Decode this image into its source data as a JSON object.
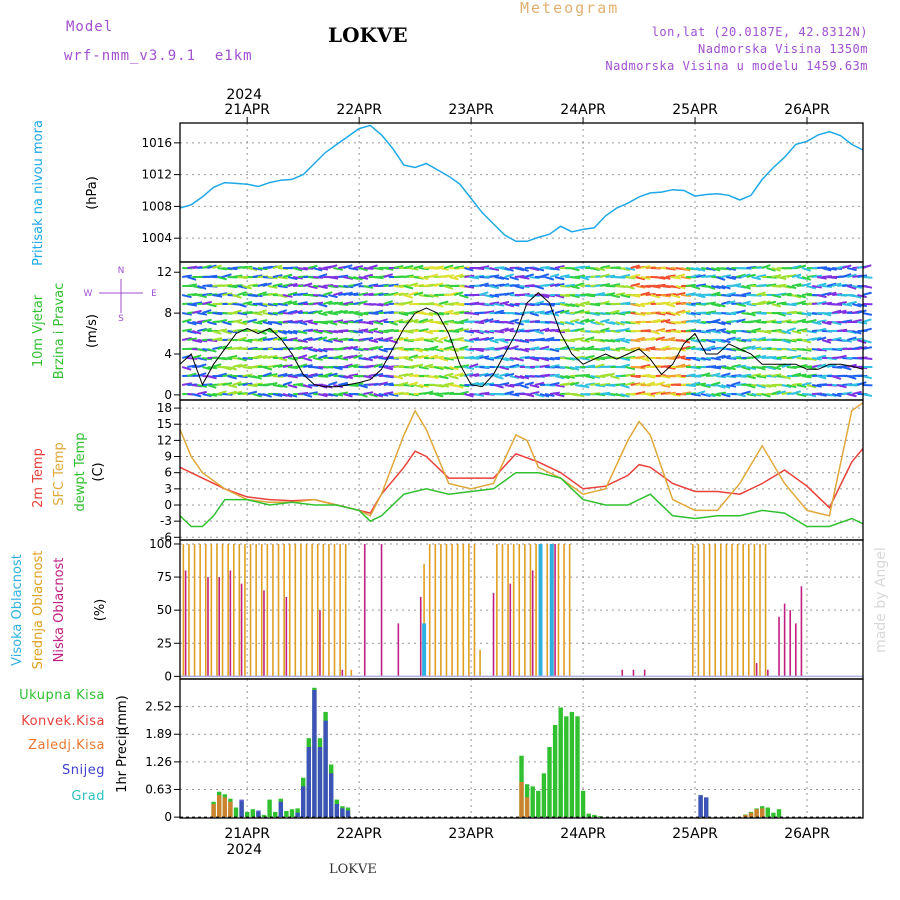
{
  "header": {
    "model_label": "Model",
    "model_name": "wrf-nmm_v3.9.1  e1km",
    "station": "LOKVE",
    "meteogram_label": "Meteogram",
    "lonlat": "lon,lat (20.0187E, 42.8312N)",
    "altitude": "Nadmorska Visina 1350m",
    "model_altitude": "Nadmorska Visina u modelu 1459.63m",
    "footer_station": "LOKVE",
    "watermark": "made by Angel"
  },
  "dates": {
    "labels": [
      "21APR",
      "22APR",
      "23APR",
      "24APR",
      "25APR",
      "26APR"
    ],
    "year": "2024",
    "range_days": [
      -0.6,
      5.5
    ]
  },
  "colors": {
    "pressure": "#1ea8e6",
    "t2m": "#e8413c",
    "tsfc": "#e0a83a",
    "dewpoint": "#30c030",
    "high_cloud": "#30b0e0",
    "mid_cloud": "#e0a020",
    "low_cloud": "#c02080",
    "total_precip": "#30c030",
    "conv_precip": "#e8413c",
    "frozen_precip": "#e87830",
    "snow": "#4040d0",
    "hail": "#30c0c0",
    "title_purple": "#a050d0",
    "meteogram_orange": "#e0b070"
  },
  "chart_data": [
    {
      "id": "pressure",
      "type": "line",
      "ylabel_1": "Pritisak na nivou mora",
      "ylabel_2": "(hPa)",
      "yticks": [
        "1004",
        "1008",
        "1012",
        "1016"
      ],
      "ylim": [
        1001,
        1018.5
      ],
      "series": [
        {
          "x": [
            -0.6,
            -0.5,
            -0.4,
            -0.3,
            -0.2,
            -0.1,
            0.0,
            0.1,
            0.2,
            0.3,
            0.4,
            0.5,
            0.6,
            0.7,
            0.8,
            0.9,
            1.0,
            1.1,
            1.2,
            1.3,
            1.4,
            1.5,
            1.6,
            1.7,
            1.8,
            1.9,
            2.0,
            2.1,
            2.2,
            2.3,
            2.4,
            2.5,
            2.6,
            2.7,
            2.8,
            2.9,
            3.0,
            3.1,
            3.2,
            3.3,
            3.4,
            3.5,
            3.6,
            3.7,
            3.8,
            3.9,
            4.0,
            4.1,
            4.2,
            4.3,
            4.4,
            4.5,
            4.6,
            4.7,
            4.8,
            4.9,
            5.0,
            5.1,
            5.2,
            5.3,
            5.4,
            5.5
          ],
          "y": [
            1007.8,
            1008.2,
            1009.2,
            1010.4,
            1011,
            1010.9,
            1010.8,
            1010.5,
            1011,
            1011.3,
            1011.4,
            1012,
            1013.4,
            1014.8,
            1015.8,
            1016.8,
            1017.8,
            1018.2,
            1017,
            1015.3,
            1013.2,
            1012.9,
            1013.4,
            1012.6,
            1011.8,
            1010.8,
            1009,
            1007.2,
            1005.8,
            1004.4,
            1003.6,
            1003.6,
            1004.1,
            1004.5,
            1005.5,
            1004.8,
            1005.1,
            1005.3,
            1006.8,
            1007.8,
            1008.4,
            1009.2,
            1009.7,
            1009.8,
            1010.1,
            1010,
            1009.3,
            1009.5,
            1009.6,
            1009.4,
            1008.8,
            1009.4,
            1011.4,
            1012.9,
            1014.2,
            1015.8,
            1016.2,
            1017,
            1017.4,
            1016.9,
            1015.8,
            1015.1
          ]
        }
      ]
    },
    {
      "id": "wind",
      "type": "line",
      "ylabel_1": "10m Vjetar",
      "ylabel_2": "Brzina i Pravac",
      "ylabel_3": "(m/s)",
      "compass": [
        "N",
        "W",
        "E",
        "S"
      ],
      "yticks": [
        "0",
        "4",
        "8",
        "12"
      ],
      "ylim": [
        -0.5,
        13
      ],
      "series": [
        {
          "x": [
            -0.6,
            -0.5,
            -0.4,
            -0.3,
            -0.2,
            -0.1,
            0.0,
            0.1,
            0.2,
            0.3,
            0.4,
            0.5,
            0.6,
            0.7,
            0.8,
            0.9,
            1.0,
            1.1,
            1.2,
            1.3,
            1.4,
            1.5,
            1.6,
            1.7,
            1.8,
            1.9,
            2.0,
            2.1,
            2.2,
            2.3,
            2.4,
            2.5,
            2.6,
            2.7,
            2.8,
            2.9,
            3.0,
            3.1,
            3.2,
            3.3,
            3.4,
            3.5,
            3.6,
            3.7,
            3.8,
            3.9,
            4.0,
            4.1,
            4.2,
            4.3,
            4.4,
            4.5,
            4.6,
            4.7,
            4.8,
            4.9,
            5.0,
            5.1,
            5.2,
            5.3,
            5.4,
            5.5
          ],
          "y": [
            3,
            4,
            1,
            3,
            4.5,
            6,
            6.5,
            6,
            6.5,
            5.5,
            4,
            2,
            1,
            0.8,
            0.8,
            1,
            1.2,
            1.5,
            2.5,
            4.5,
            6.5,
            8,
            8.5,
            8,
            6,
            3,
            1,
            0.8,
            2,
            4,
            6,
            9,
            10,
            9,
            6,
            4,
            3,
            3.5,
            4,
            3.5,
            4,
            4.5,
            3.5,
            2,
            3,
            5,
            6,
            4,
            4,
            5,
            4.5,
            4,
            3,
            3,
            3,
            3,
            2.5,
            2.5,
            3,
            3,
            2.8,
            2.5
          ]
        }
      ]
    },
    {
      "id": "temperature",
      "type": "line",
      "ylabel_1": "2m Temp",
      "ylabel_2": "SFC Temp",
      "ylabel_3": "dewpt Temp",
      "ylabel_4": "(C)",
      "yticks": [
        "-6",
        "-3",
        "0",
        "3",
        "6",
        "9",
        "12",
        "15",
        "18"
      ],
      "ylim": [
        -6.5,
        19.5
      ],
      "series": [
        {
          "name": "2m Temp",
          "key": "t2m",
          "x": [
            -0.6,
            -0.4,
            -0.2,
            0.0,
            0.2,
            0.4,
            0.6,
            0.8,
            1.0,
            1.1,
            1.2,
            1.4,
            1.5,
            1.6,
            1.8,
            2.0,
            2.2,
            2.4,
            2.6,
            2.8,
            3.0,
            3.2,
            3.4,
            3.5,
            3.6,
            3.8,
            4.0,
            4.2,
            4.4,
            4.6,
            4.8,
            5.0,
            5.2,
            5.4,
            5.5
          ],
          "y": [
            7,
            5,
            3,
            1.5,
            1,
            0.8,
            1,
            0,
            -1,
            -1.5,
            2,
            7,
            10,
            9,
            5,
            5,
            5,
            9.5,
            8,
            6,
            3,
            3.5,
            5.5,
            7.5,
            7,
            4,
            2.5,
            2.5,
            2,
            4,
            6.5,
            3.5,
            -0.5,
            8,
            10.5
          ]
        },
        {
          "name": "SFC Temp",
          "key": "tsfc",
          "x": [
            -0.6,
            -0.5,
            -0.4,
            -0.2,
            0.0,
            0.2,
            0.4,
            0.6,
            0.8,
            1.0,
            1.1,
            1.2,
            1.4,
            1.5,
            1.6,
            1.8,
            2.0,
            2.2,
            2.4,
            2.5,
            2.6,
            2.8,
            3.0,
            3.2,
            3.4,
            3.5,
            3.6,
            3.8,
            4.0,
            4.2,
            4.4,
            4.6,
            4.8,
            5.0,
            5.2,
            5.4,
            5.5
          ],
          "y": [
            14,
            9,
            6,
            3,
            1,
            0.5,
            0.5,
            1,
            0,
            -1,
            -2,
            2,
            13,
            17.5,
            14,
            4,
            3,
            4,
            13,
            12,
            7,
            5,
            2,
            3,
            12,
            15.5,
            13,
            1,
            -1,
            -1,
            4,
            11,
            4,
            -1,
            -2,
            17.5,
            19
          ]
        },
        {
          "name": "dewpt Temp",
          "key": "dewpoint",
          "x": [
            -0.6,
            -0.5,
            -0.4,
            -0.3,
            -0.2,
            0.0,
            0.2,
            0.4,
            0.6,
            0.8,
            1.0,
            1.1,
            1.2,
            1.4,
            1.6,
            1.8,
            2.0,
            2.2,
            2.4,
            2.6,
            2.8,
            3.0,
            3.2,
            3.4,
            3.6,
            3.8,
            4.0,
            4.2,
            4.4,
            4.6,
            4.8,
            5.0,
            5.2,
            5.4,
            5.5
          ],
          "y": [
            -2,
            -4,
            -4,
            -2,
            1,
            1,
            0,
            0.5,
            0,
            0,
            -1,
            -3,
            -2,
            2,
            3,
            2,
            2.5,
            3,
            6,
            6,
            5,
            1,
            0,
            0,
            2,
            -2,
            -2.5,
            -2,
            -2,
            -1,
            -1.5,
            -4,
            -4,
            -2.5,
            -3.5
          ]
        }
      ]
    },
    {
      "id": "clouds",
      "type": "bar",
      "ylabel_1": "Visoka Oblacnost",
      "ylabel_2": "Srednja Oblacnost",
      "ylabel_3": "Niska Oblacnost",
      "ylabel_4": "(%)",
      "yticks": [
        "0",
        "25",
        "50",
        "75",
        "100"
      ],
      "ylim": [
        -2,
        103
      ],
      "series": [
        {
          "name": "Srednja Oblacnost",
          "key": "mid_cloud",
          "x": [
            -0.57,
            -0.52,
            -0.47,
            -0.42,
            -0.37,
            -0.32,
            -0.27,
            -0.22,
            -0.17,
            -0.12,
            -0.07,
            -0.02,
            0.03,
            0.08,
            0.13,
            0.18,
            0.23,
            0.28,
            0.33,
            0.38,
            0.43,
            0.48,
            0.53,
            0.58,
            0.63,
            0.68,
            0.73,
            0.78,
            0.83,
            0.88,
            0.93,
            1.58,
            1.63,
            1.68,
            1.73,
            1.78,
            1.83,
            1.88,
            1.93,
            1.98,
            2.03,
            2.08,
            2.23,
            2.28,
            2.33,
            2.38,
            2.43,
            2.48,
            2.53,
            2.58,
            2.63,
            2.68,
            2.73,
            2.78,
            2.83,
            2.88,
            3.98,
            4.03,
            4.08,
            4.13,
            4.18,
            4.23,
            4.28,
            4.33,
            4.38,
            4.43,
            4.48,
            4.53,
            4.58,
            4.63
          ],
          "y": [
            100,
            100,
            100,
            100,
            100,
            100,
            100,
            100,
            100,
            100,
            100,
            100,
            100,
            100,
            100,
            100,
            100,
            100,
            100,
            100,
            100,
            100,
            100,
            100,
            100,
            100,
            100,
            100,
            100,
            100,
            5,
            85,
            100,
            100,
            100,
            100,
            100,
            100,
            100,
            100,
            100,
            20,
            100,
            100,
            100,
            100,
            100,
            100,
            100,
            100,
            100,
            100,
            100,
            100,
            100,
            100,
            100,
            100,
            100,
            100,
            100,
            100,
            100,
            100,
            100,
            100,
            100,
            100,
            100,
            100
          ]
        },
        {
          "name": "Niska Oblacnost",
          "key": "low_cloud",
          "x": [
            -0.55,
            -0.35,
            -0.25,
            -0.15,
            -0.05,
            0.15,
            0.35,
            0.65,
            0.85,
            1.05,
            1.2,
            1.35,
            1.55,
            2.2,
            2.35,
            2.55,
            2.75,
            3.35,
            3.45,
            3.55,
            4.55,
            4.65,
            4.75,
            4.8,
            4.85,
            4.9,
            4.95
          ],
          "y": [
            80,
            75,
            75,
            80,
            70,
            65,
            60,
            50,
            5,
            100,
            100,
            40,
            60,
            63,
            70,
            80,
            100,
            5,
            5,
            5,
            10,
            5,
            45,
            55,
            50,
            40,
            68
          ]
        },
        {
          "name": "Visoka Oblacnost",
          "key": "high_cloud",
          "x": [
            1.58,
            2.62,
            2.72
          ],
          "y": [
            40,
            100,
            100
          ]
        }
      ]
    },
    {
      "id": "precip",
      "type": "bar",
      "legend": [
        "Ukupna Kisa",
        "Konvek.Kisa",
        "Zaledj.Kisa",
        "Snijeg",
        "Grad"
      ],
      "ylabel_1": "1hr Precip",
      "ylabel_2": "(mm)",
      "yticks": [
        "0",
        "0.63",
        "1.26",
        "1.89",
        "2.52"
      ],
      "ylim": [
        -0.02,
        3.15
      ],
      "series": [
        {
          "name": "Ukupna Kisa",
          "key": "total_precip",
          "x": [
            -0.3,
            -0.25,
            -0.2,
            -0.15,
            -0.1,
            -0.05,
            0.0,
            0.05,
            0.1,
            0.15,
            0.2,
            0.25,
            0.3,
            0.35,
            0.4,
            0.45,
            0.5,
            0.55,
            0.6,
            0.65,
            0.7,
            0.75,
            0.8,
            0.85,
            0.9,
            2.45,
            2.5,
            2.55,
            2.6,
            2.65,
            2.7,
            2.75,
            2.8,
            2.85,
            2.9,
            2.95,
            3.0,
            3.05,
            3.1,
            3.15,
            4.05,
            4.1,
            4.45,
            4.5,
            4.55,
            4.6,
            4.65,
            4.7,
            4.75
          ],
          "y": [
            0.35,
            0.58,
            0.52,
            0.42,
            0.22,
            0.36,
            0.12,
            0.18,
            0.12,
            0.05,
            0.4,
            0.12,
            0.42,
            0.14,
            0.18,
            0.2,
            0.9,
            1.8,
            2.95,
            1.8,
            2.4,
            1.2,
            0.4,
            0.25,
            0.22,
            1.4,
            0.75,
            0.7,
            0.6,
            1.0,
            1.6,
            2.1,
            2.5,
            2.3,
            2.4,
            2.3,
            0.6,
            0.08,
            0.05,
            0.02,
            0.5,
            0.45,
            0.06,
            0.12,
            0.2,
            0.25,
            0.22,
            0.1,
            0.18
          ]
        },
        {
          "name": "Snijeg",
          "key": "snow",
          "x": [
            -0.05,
            0.1,
            0.3,
            0.45,
            0.5,
            0.55,
            0.6,
            0.65,
            0.7,
            0.75,
            0.8,
            0.85,
            0.9,
            4.05,
            4.1
          ],
          "y": [
            0.4,
            0.15,
            0.35,
            0.1,
            0.7,
            1.6,
            2.9,
            1.6,
            2.2,
            1.0,
            0.3,
            0.2,
            0.15,
            0.5,
            0.45
          ]
        },
        {
          "name": "Zaledj.Kisa",
          "key": "frozen_precip",
          "x": [
            -0.3,
            -0.25,
            -0.2,
            -0.15,
            2.45,
            2.5,
            4.45,
            4.5,
            4.55,
            4.6
          ],
          "y": [
            0.3,
            0.5,
            0.45,
            0.35,
            0.8,
            0.45,
            0.05,
            0.1,
            0.18,
            0.2
          ]
        }
      ]
    }
  ]
}
